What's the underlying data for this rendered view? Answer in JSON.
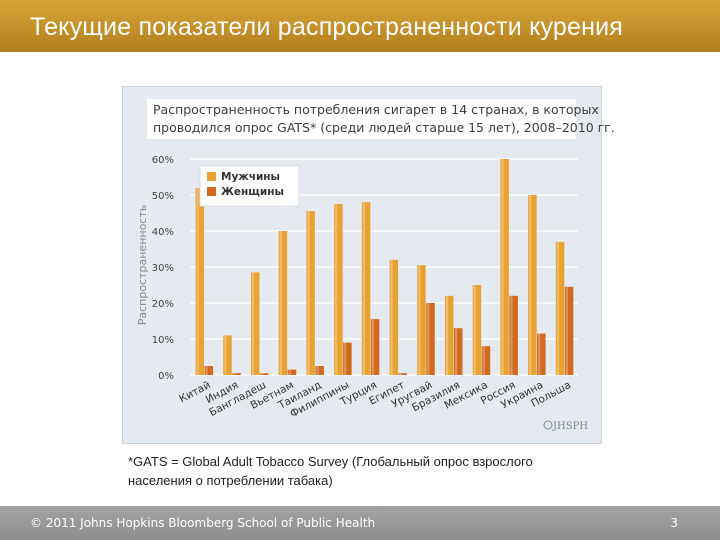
{
  "slide": {
    "title": "Текущие показатели распространенности курения",
    "footnote_line1": "*GATS = Global Adult Tobacco Survey (Глобальный опрос взрослого",
    "footnote_line2": "населения о потреблении табака)",
    "copyright": "© 2011 Johns Hopkins Bloomberg School of Public Health",
    "page_number": "3",
    "logo_text": "JHSPH"
  },
  "chart_data": {
    "type": "bar",
    "title_line1": "Распространенность потребления сигарет в 14 странах, в которых",
    "title_line2": "проводился опрос GATS* (среди людей старше 15 лет), 2008–2010 гг.",
    "ylabel": "Распространенность",
    "ylim": [
      0,
      60
    ],
    "yticks": [
      "0%",
      "10%",
      "20%",
      "30%",
      "40%",
      "50%",
      "60%"
    ],
    "legend_position": "top-left",
    "categories": [
      "Китай",
      "Индия",
      "Бангладеш",
      "Вьетнам",
      "Таиланд",
      "Филиппины",
      "Турция",
      "Египет",
      "Уругвай",
      "Бразилия",
      "Мексика",
      "Россия",
      "Украина",
      "Польша"
    ],
    "series": [
      {
        "name": "Мужчины",
        "color": "#e8a232",
        "values": [
          52.0,
          11.0,
          28.5,
          40.0,
          45.5,
          47.5,
          48.0,
          32.0,
          30.5,
          22.0,
          25.0,
          60.0,
          50.0,
          37.0
        ]
      },
      {
        "name": "Женщины",
        "color": "#d2691e",
        "values": [
          2.5,
          0.5,
          0.5,
          1.5,
          2.5,
          9.0,
          15.5,
          0.5,
          20.0,
          13.0,
          8.0,
          22.0,
          11.5,
          24.5
        ]
      }
    ]
  }
}
